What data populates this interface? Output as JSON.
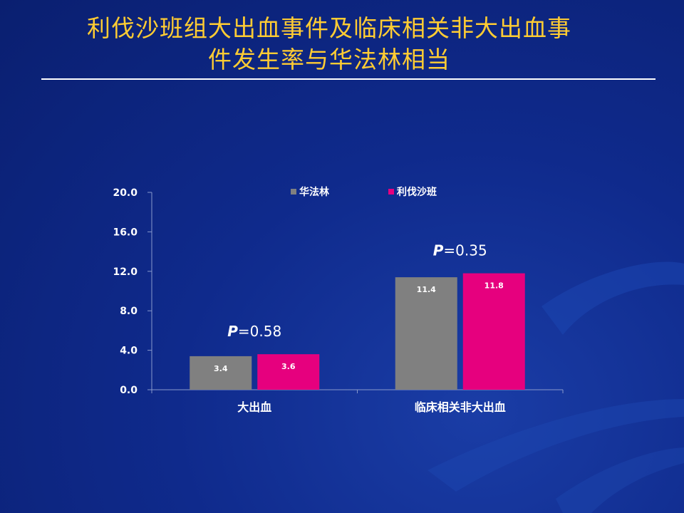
{
  "title": {
    "line1": "利伐沙班组大出血事件及临床相关非大出血事",
    "line2": "件发生率与华法林相当"
  },
  "chart_data": {
    "type": "bar",
    "categories": [
      "大出血",
      "临床相关非大出血"
    ],
    "series": [
      {
        "name": "华法林",
        "color": "#808080",
        "values": [
          3.4,
          11.4
        ]
      },
      {
        "name": "利伐沙班",
        "color": "#e6007e",
        "values": [
          3.6,
          11.8
        ]
      }
    ],
    "ylim": [
      0,
      20
    ],
    "yticks": [
      "0.0",
      "4.0",
      "8.0",
      "12.0",
      "16.0",
      "20.0"
    ],
    "data_labels": [
      [
        "3.4",
        "11.4"
      ],
      [
        "3.6",
        "11.8"
      ]
    ],
    "annotations": [
      {
        "category": "大出血",
        "prefix": "P",
        "text": "=0.58"
      },
      {
        "category": "临床相关非大出血",
        "prefix": "P",
        "text": "=0.35"
      }
    ],
    "legend_position": "top",
    "grid": false
  }
}
